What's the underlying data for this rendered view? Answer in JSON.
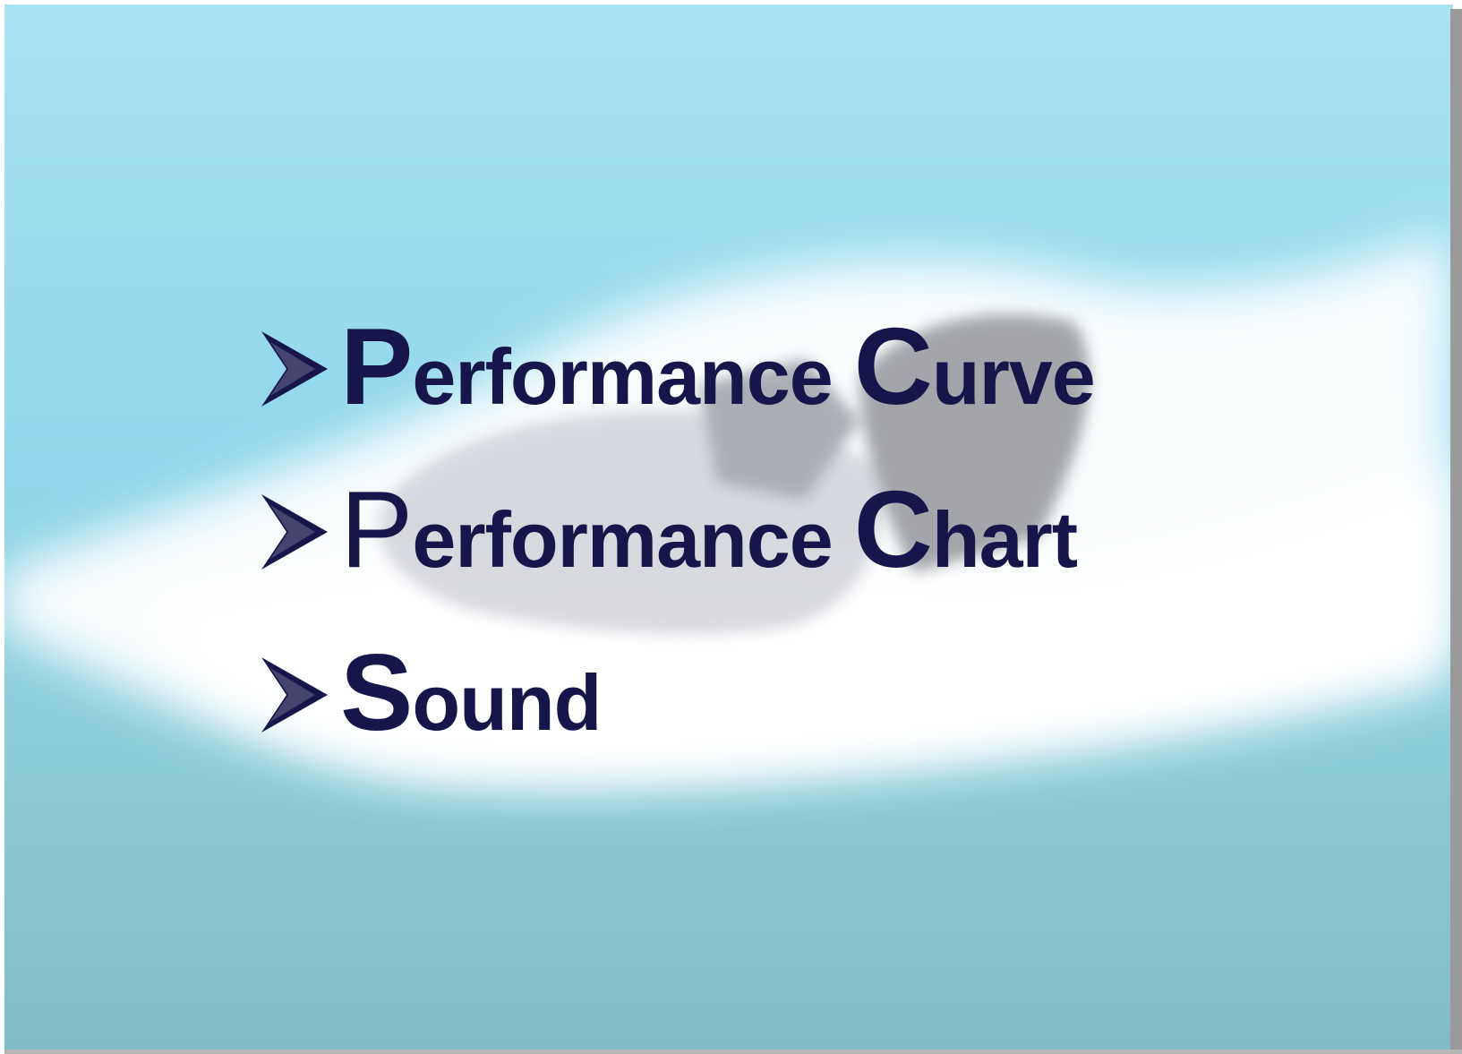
{
  "slide": {
    "items": [
      {
        "words": [
          "Performance",
          "Curve"
        ]
      },
      {
        "words": [
          "Performance",
          "Chart"
        ]
      },
      {
        "words": [
          "Sound"
        ]
      }
    ]
  }
}
